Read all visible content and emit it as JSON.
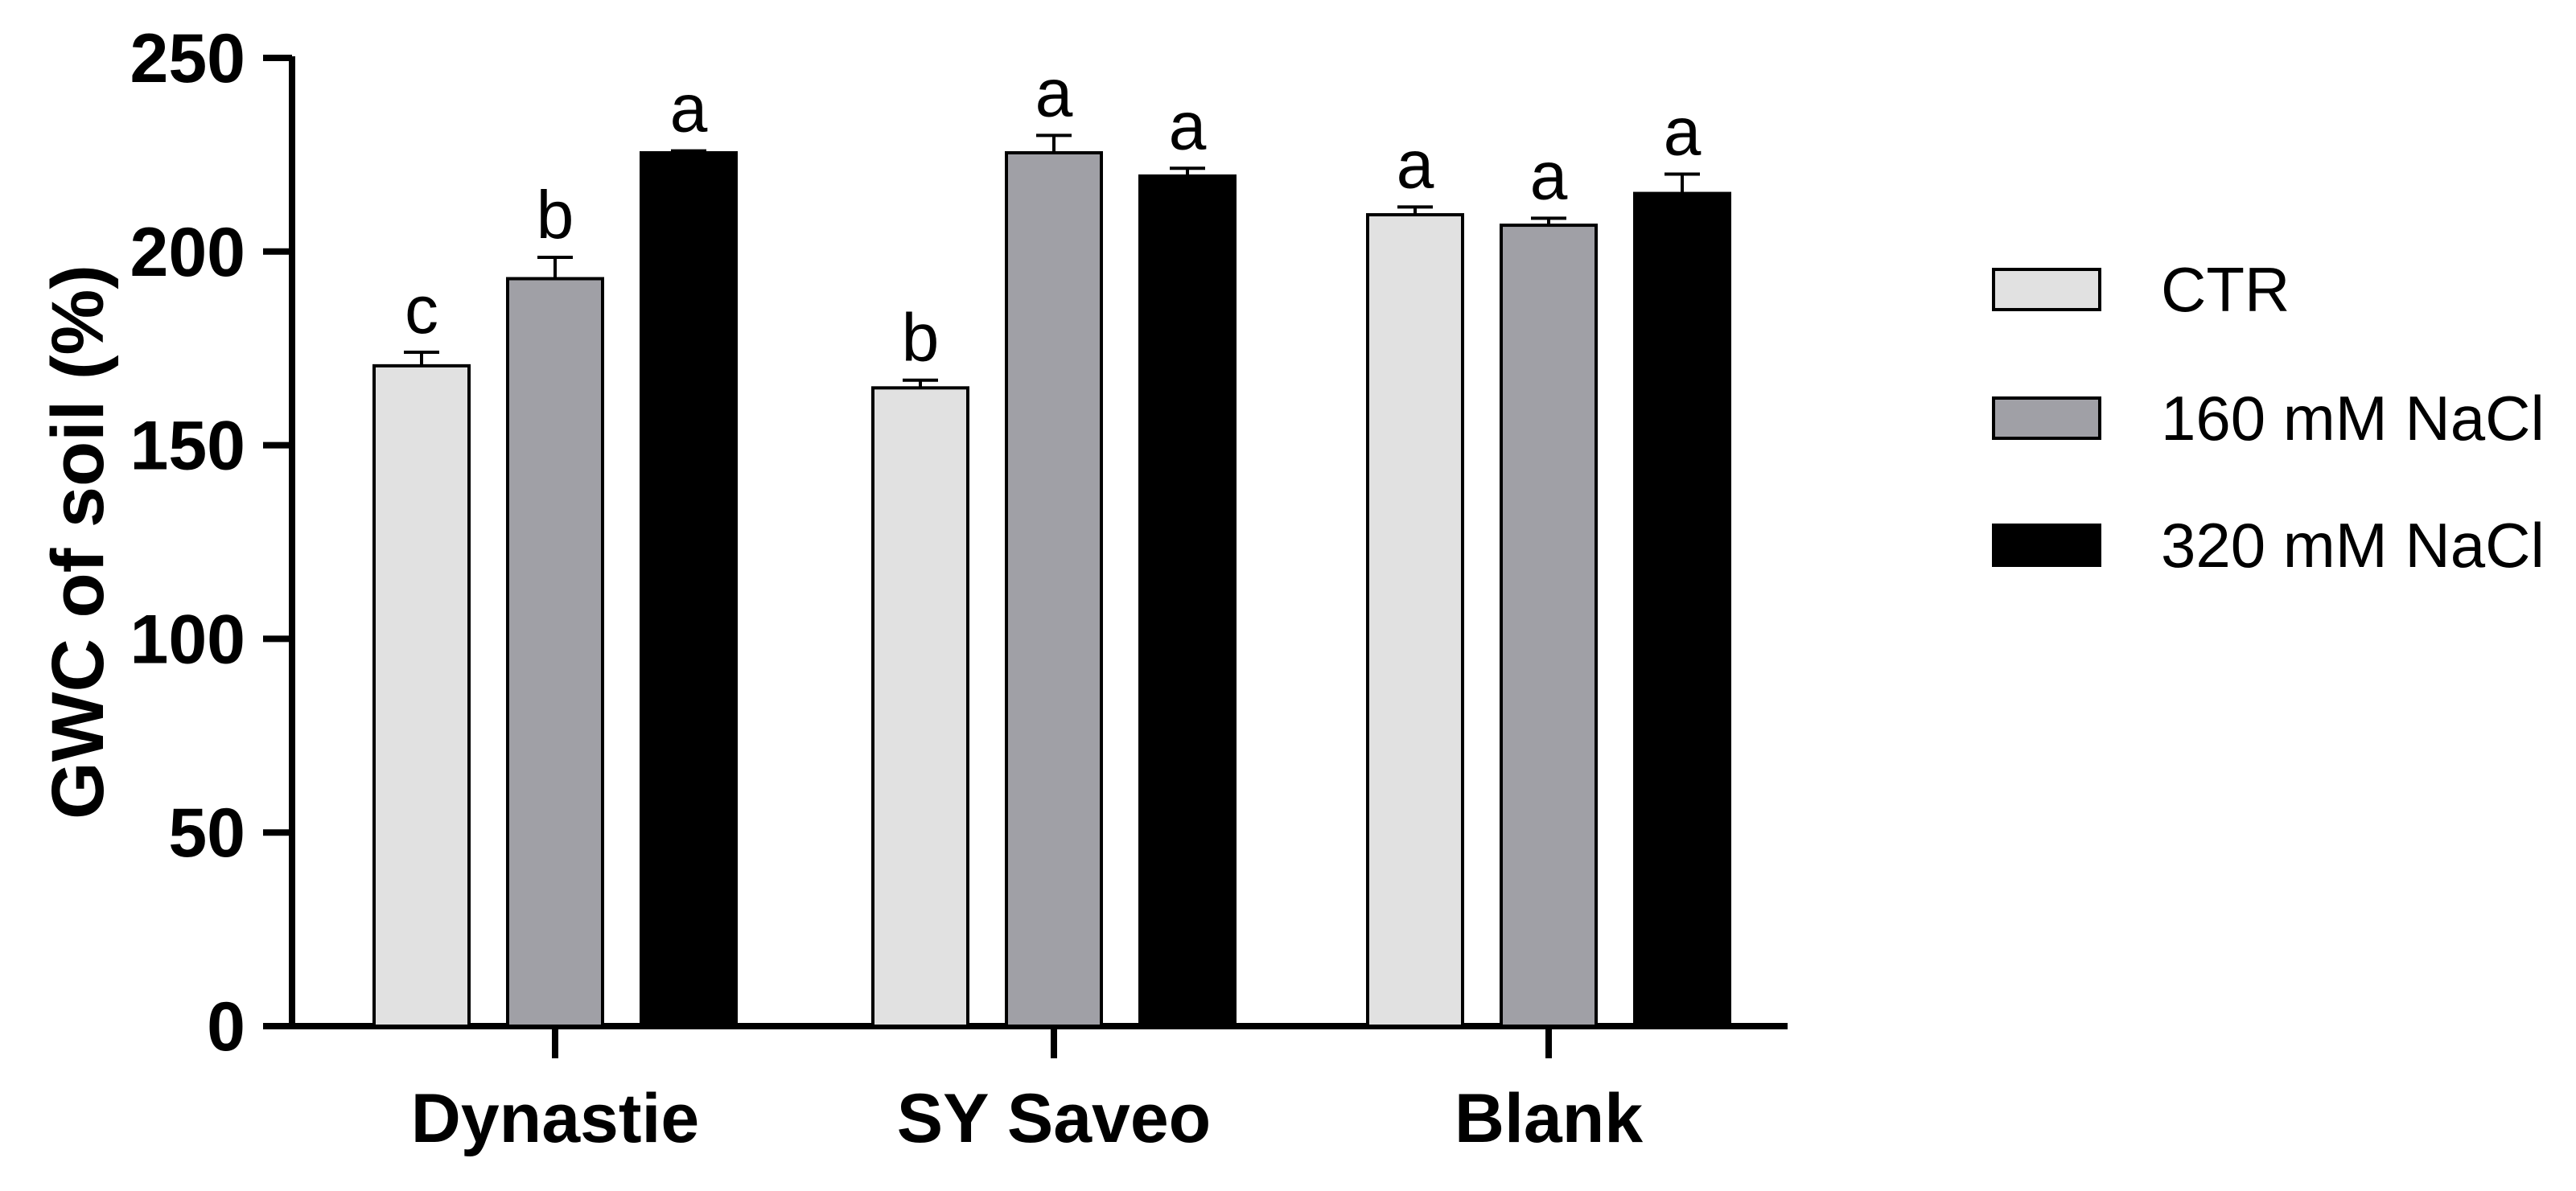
{
  "chart_data": {
    "type": "bar",
    "title": "",
    "xlabel": "",
    "ylabel": "GWC of soil (%)",
    "ylim": [
      0,
      250
    ],
    "yticks": [
      0,
      50,
      100,
      150,
      200,
      250
    ],
    "ytick_labels": [
      "0",
      "50",
      "100",
      "150",
      "200",
      "250"
    ],
    "grid": false,
    "legend_position": "right",
    "categories": [
      "Dynastie",
      "SY Saveo",
      "Blank"
    ],
    "series": [
      {
        "name": "CTR",
        "color": "#e1e1e1",
        "values": [
          170.5,
          164.8,
          209.5
        ],
        "errors": [
          3.5,
          2.0,
          2.0
        ],
        "sig_letters": [
          "c",
          "b",
          "a"
        ]
      },
      {
        "name": "160 mM NaCl",
        "color": "#a0a0a6",
        "values": [
          193.0,
          225.5,
          206.8
        ],
        "errors": [
          5.5,
          4.5,
          1.8
        ],
        "sig_letters": [
          "b",
          "a",
          "a"
        ]
      },
      {
        "name": "320 mM NaCl",
        "color": "#000000",
        "values": [
          225.5,
          219.5,
          215.0
        ],
        "errors": [
          0.5,
          2.0,
          5.0
        ],
        "sig_letters": [
          "a",
          "a",
          "a"
        ]
      }
    ]
  }
}
